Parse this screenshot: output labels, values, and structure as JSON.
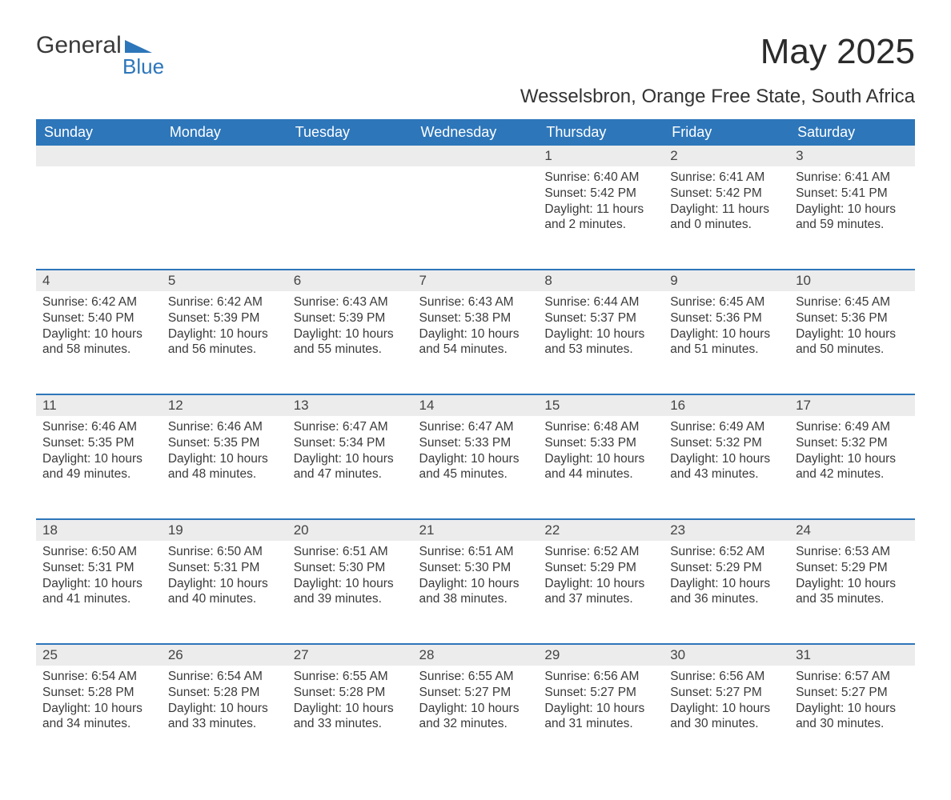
{
  "logo": {
    "text_left": "General",
    "text_right": "Blue",
    "icon_color": "#2d76ba"
  },
  "title": "May 2025",
  "subtitle": "Wesselsbron, Orange Free State, South Africa",
  "colors": {
    "header_bg": "#2d76ba",
    "header_text": "#ffffff",
    "daynum_bg": "#ececec",
    "rule": "#2d76ba",
    "body_text": "#3a3a3a",
    "page_bg": "#ffffff"
  },
  "dayHeaders": [
    "Sunday",
    "Monday",
    "Tuesday",
    "Wednesday",
    "Thursday",
    "Friday",
    "Saturday"
  ],
  "weeks": [
    [
      null,
      null,
      null,
      null,
      {
        "n": "1",
        "sr": "6:40 AM",
        "ss": "5:42 PM",
        "dl": "11 hours and 2 minutes."
      },
      {
        "n": "2",
        "sr": "6:41 AM",
        "ss": "5:42 PM",
        "dl": "11 hours and 0 minutes."
      },
      {
        "n": "3",
        "sr": "6:41 AM",
        "ss": "5:41 PM",
        "dl": "10 hours and 59 minutes."
      }
    ],
    [
      {
        "n": "4",
        "sr": "6:42 AM",
        "ss": "5:40 PM",
        "dl": "10 hours and 58 minutes."
      },
      {
        "n": "5",
        "sr": "6:42 AM",
        "ss": "5:39 PM",
        "dl": "10 hours and 56 minutes."
      },
      {
        "n": "6",
        "sr": "6:43 AM",
        "ss": "5:39 PM",
        "dl": "10 hours and 55 minutes."
      },
      {
        "n": "7",
        "sr": "6:43 AM",
        "ss": "5:38 PM",
        "dl": "10 hours and 54 minutes."
      },
      {
        "n": "8",
        "sr": "6:44 AM",
        "ss": "5:37 PM",
        "dl": "10 hours and 53 minutes."
      },
      {
        "n": "9",
        "sr": "6:45 AM",
        "ss": "5:36 PM",
        "dl": "10 hours and 51 minutes."
      },
      {
        "n": "10",
        "sr": "6:45 AM",
        "ss": "5:36 PM",
        "dl": "10 hours and 50 minutes."
      }
    ],
    [
      {
        "n": "11",
        "sr": "6:46 AM",
        "ss": "5:35 PM",
        "dl": "10 hours and 49 minutes."
      },
      {
        "n": "12",
        "sr": "6:46 AM",
        "ss": "5:35 PM",
        "dl": "10 hours and 48 minutes."
      },
      {
        "n": "13",
        "sr": "6:47 AM",
        "ss": "5:34 PM",
        "dl": "10 hours and 47 minutes."
      },
      {
        "n": "14",
        "sr": "6:47 AM",
        "ss": "5:33 PM",
        "dl": "10 hours and 45 minutes."
      },
      {
        "n": "15",
        "sr": "6:48 AM",
        "ss": "5:33 PM",
        "dl": "10 hours and 44 minutes."
      },
      {
        "n": "16",
        "sr": "6:49 AM",
        "ss": "5:32 PM",
        "dl": "10 hours and 43 minutes."
      },
      {
        "n": "17",
        "sr": "6:49 AM",
        "ss": "5:32 PM",
        "dl": "10 hours and 42 minutes."
      }
    ],
    [
      {
        "n": "18",
        "sr": "6:50 AM",
        "ss": "5:31 PM",
        "dl": "10 hours and 41 minutes."
      },
      {
        "n": "19",
        "sr": "6:50 AM",
        "ss": "5:31 PM",
        "dl": "10 hours and 40 minutes."
      },
      {
        "n": "20",
        "sr": "6:51 AM",
        "ss": "5:30 PM",
        "dl": "10 hours and 39 minutes."
      },
      {
        "n": "21",
        "sr": "6:51 AM",
        "ss": "5:30 PM",
        "dl": "10 hours and 38 minutes."
      },
      {
        "n": "22",
        "sr": "6:52 AM",
        "ss": "5:29 PM",
        "dl": "10 hours and 37 minutes."
      },
      {
        "n": "23",
        "sr": "6:52 AM",
        "ss": "5:29 PM",
        "dl": "10 hours and 36 minutes."
      },
      {
        "n": "24",
        "sr": "6:53 AM",
        "ss": "5:29 PM",
        "dl": "10 hours and 35 minutes."
      }
    ],
    [
      {
        "n": "25",
        "sr": "6:54 AM",
        "ss": "5:28 PM",
        "dl": "10 hours and 34 minutes."
      },
      {
        "n": "26",
        "sr": "6:54 AM",
        "ss": "5:28 PM",
        "dl": "10 hours and 33 minutes."
      },
      {
        "n": "27",
        "sr": "6:55 AM",
        "ss": "5:28 PM",
        "dl": "10 hours and 33 minutes."
      },
      {
        "n": "28",
        "sr": "6:55 AM",
        "ss": "5:27 PM",
        "dl": "10 hours and 32 minutes."
      },
      {
        "n": "29",
        "sr": "6:56 AM",
        "ss": "5:27 PM",
        "dl": "10 hours and 31 minutes."
      },
      {
        "n": "30",
        "sr": "6:56 AM",
        "ss": "5:27 PM",
        "dl": "10 hours and 30 minutes."
      },
      {
        "n": "31",
        "sr": "6:57 AM",
        "ss": "5:27 PM",
        "dl": "10 hours and 30 minutes."
      }
    ]
  ],
  "labels": {
    "sunrise": "Sunrise: ",
    "sunset": "Sunset: ",
    "daylight": "Daylight: "
  }
}
